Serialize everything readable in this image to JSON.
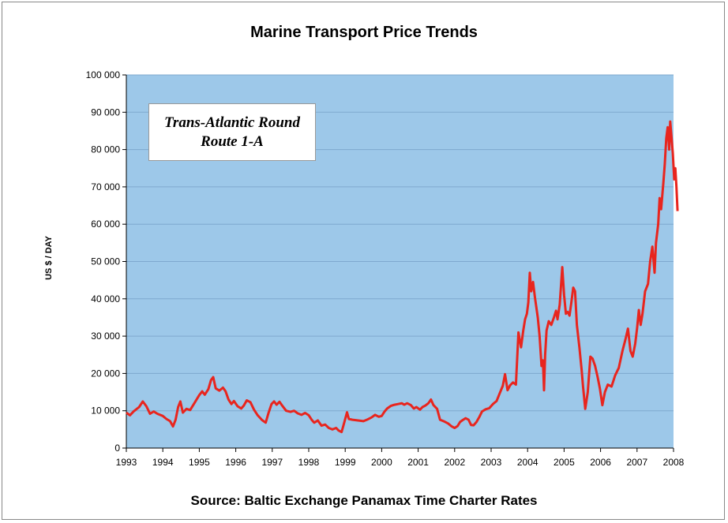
{
  "chart_data": {
    "type": "line",
    "title": "Marine Transport Price Trends",
    "ylabel": "US $ / DAY",
    "source": "Source: Baltic Exchange Panamax Time Charter Rates",
    "annotation": [
      "Trans-Atlantic Round",
      "Route 1-A"
    ],
    "xlim": [
      1993,
      2008
    ],
    "ylim": [
      0,
      100000
    ],
    "x_ticks": [
      1993,
      1994,
      1995,
      1996,
      1997,
      1998,
      1999,
      2000,
      2001,
      2002,
      2003,
      2004,
      2005,
      2006,
      2007,
      2008
    ],
    "y_ticks": [
      0,
      10000,
      20000,
      30000,
      40000,
      50000,
      60000,
      70000,
      80000,
      90000,
      100000
    ],
    "y_tick_labels": [
      "0",
      "10 000",
      "20 000",
      "30 000",
      "40 000",
      "50 000",
      "60 000",
      "70 000",
      "80 000",
      "90 000",
      "100 000"
    ],
    "grid": true,
    "plot_background": "#9dc8e9",
    "series": [
      {
        "color": "#e8251e",
        "points": [
          [
            1993.0,
            9500
          ],
          [
            1993.1,
            8800
          ],
          [
            1993.2,
            9800
          ],
          [
            1993.35,
            11000
          ],
          [
            1993.45,
            12500
          ],
          [
            1993.55,
            11200
          ],
          [
            1993.65,
            9200
          ],
          [
            1993.75,
            9800
          ],
          [
            1993.85,
            9200
          ],
          [
            1994.0,
            8600
          ],
          [
            1994.1,
            7800
          ],
          [
            1994.2,
            7200
          ],
          [
            1994.28,
            5800
          ],
          [
            1994.35,
            7600
          ],
          [
            1994.42,
            11000
          ],
          [
            1994.48,
            12500
          ],
          [
            1994.55,
            9500
          ],
          [
            1994.65,
            10500
          ],
          [
            1994.75,
            10200
          ],
          [
            1994.85,
            11800
          ],
          [
            1995.0,
            14200
          ],
          [
            1995.08,
            15200
          ],
          [
            1995.15,
            14300
          ],
          [
            1995.25,
            15800
          ],
          [
            1995.32,
            18200
          ],
          [
            1995.38,
            19000
          ],
          [
            1995.45,
            16000
          ],
          [
            1995.55,
            15400
          ],
          [
            1995.65,
            16200
          ],
          [
            1995.72,
            15200
          ],
          [
            1995.8,
            13000
          ],
          [
            1995.88,
            11800
          ],
          [
            1995.95,
            12600
          ],
          [
            1996.05,
            11200
          ],
          [
            1996.15,
            10600
          ],
          [
            1996.22,
            11400
          ],
          [
            1996.3,
            12800
          ],
          [
            1996.4,
            12300
          ],
          [
            1996.5,
            10300
          ],
          [
            1996.6,
            8800
          ],
          [
            1996.72,
            7500
          ],
          [
            1996.82,
            6800
          ],
          [
            1996.9,
            9500
          ],
          [
            1996.98,
            11800
          ],
          [
            1997.05,
            12500
          ],
          [
            1997.12,
            11600
          ],
          [
            1997.2,
            12400
          ],
          [
            1997.28,
            11300
          ],
          [
            1997.38,
            10000
          ],
          [
            1997.5,
            9700
          ],
          [
            1997.6,
            10000
          ],
          [
            1997.7,
            9300
          ],
          [
            1997.8,
            8900
          ],
          [
            1997.9,
            9400
          ],
          [
            1998.0,
            8800
          ],
          [
            1998.08,
            7600
          ],
          [
            1998.15,
            6800
          ],
          [
            1998.25,
            7400
          ],
          [
            1998.35,
            6000
          ],
          [
            1998.45,
            6300
          ],
          [
            1998.55,
            5400
          ],
          [
            1998.65,
            5000
          ],
          [
            1998.75,
            5400
          ],
          [
            1998.82,
            4700
          ],
          [
            1998.9,
            4300
          ],
          [
            1998.95,
            6000
          ],
          [
            1999.0,
            7800
          ],
          [
            1999.05,
            9600
          ],
          [
            1999.1,
            7800
          ],
          [
            1999.2,
            7600
          ],
          [
            1999.35,
            7400
          ],
          [
            1999.5,
            7200
          ],
          [
            1999.62,
            7700
          ],
          [
            1999.72,
            8200
          ],
          [
            1999.82,
            8900
          ],
          [
            1999.92,
            8400
          ],
          [
            2000.0,
            8600
          ],
          [
            2000.08,
            9800
          ],
          [
            2000.15,
            10600
          ],
          [
            2000.25,
            11300
          ],
          [
            2000.35,
            11600
          ],
          [
            2000.45,
            11800
          ],
          [
            2000.55,
            12000
          ],
          [
            2000.62,
            11600
          ],
          [
            2000.7,
            12000
          ],
          [
            2000.8,
            11500
          ],
          [
            2000.88,
            10600
          ],
          [
            2000.95,
            11000
          ],
          [
            2001.05,
            10300
          ],
          [
            2001.12,
            11000
          ],
          [
            2001.2,
            11400
          ],
          [
            2001.28,
            12000
          ],
          [
            2001.35,
            13000
          ],
          [
            2001.42,
            11500
          ],
          [
            2001.52,
            10500
          ],
          [
            2001.6,
            7600
          ],
          [
            2001.72,
            7100
          ],
          [
            2001.82,
            6600
          ],
          [
            2001.92,
            5800
          ],
          [
            2002.0,
            5400
          ],
          [
            2002.08,
            5900
          ],
          [
            2002.15,
            7000
          ],
          [
            2002.22,
            7500
          ],
          [
            2002.3,
            8000
          ],
          [
            2002.38,
            7600
          ],
          [
            2002.45,
            6200
          ],
          [
            2002.52,
            6100
          ],
          [
            2002.6,
            7000
          ],
          [
            2002.68,
            8400
          ],
          [
            2002.75,
            9800
          ],
          [
            2002.85,
            10400
          ],
          [
            2002.95,
            10700
          ],
          [
            2003.05,
            11800
          ],
          [
            2003.15,
            12600
          ],
          [
            2003.25,
            15000
          ],
          [
            2003.32,
            16700
          ],
          [
            2003.38,
            19800
          ],
          [
            2003.45,
            15500
          ],
          [
            2003.52,
            16800
          ],
          [
            2003.6,
            17600
          ],
          [
            2003.68,
            17000
          ],
          [
            2003.75,
            31000
          ],
          [
            2003.82,
            27000
          ],
          [
            2003.88,
            31500
          ],
          [
            2003.93,
            34500
          ],
          [
            2003.98,
            36000
          ],
          [
            2004.02,
            39000
          ],
          [
            2004.06,
            47000
          ],
          [
            2004.1,
            42000
          ],
          [
            2004.15,
            44500
          ],
          [
            2004.2,
            40500
          ],
          [
            2004.28,
            35000
          ],
          [
            2004.33,
            30000
          ],
          [
            2004.38,
            22000
          ],
          [
            2004.42,
            23500
          ],
          [
            2004.45,
            15500
          ],
          [
            2004.48,
            25000
          ],
          [
            2004.52,
            31500
          ],
          [
            2004.58,
            34000
          ],
          [
            2004.65,
            33000
          ],
          [
            2004.72,
            35000
          ],
          [
            2004.78,
            36800
          ],
          [
            2004.82,
            34500
          ],
          [
            2004.88,
            38500
          ],
          [
            2004.95,
            48500
          ],
          [
            2005.0,
            41000
          ],
          [
            2005.05,
            36000
          ],
          [
            2005.1,
            36500
          ],
          [
            2005.15,
            35500
          ],
          [
            2005.2,
            39000
          ],
          [
            2005.25,
            43000
          ],
          [
            2005.3,
            42000
          ],
          [
            2005.35,
            33000
          ],
          [
            2005.42,
            27000
          ],
          [
            2005.48,
            21000
          ],
          [
            2005.52,
            16500
          ],
          [
            2005.58,
            10500
          ],
          [
            2005.65,
            15000
          ],
          [
            2005.72,
            24500
          ],
          [
            2005.78,
            24000
          ],
          [
            2005.85,
            22000
          ],
          [
            2005.92,
            19000
          ],
          [
            2005.98,
            16000
          ],
          [
            2006.05,
            11500
          ],
          [
            2006.12,
            15000
          ],
          [
            2006.2,
            17000
          ],
          [
            2006.3,
            16500
          ],
          [
            2006.4,
            19500
          ],
          [
            2006.5,
            21500
          ],
          [
            2006.6,
            26000
          ],
          [
            2006.68,
            29000
          ],
          [
            2006.75,
            32000
          ],
          [
            2006.82,
            26000
          ],
          [
            2006.88,
            24500
          ],
          [
            2006.95,
            28000
          ],
          [
            2007.0,
            32000
          ],
          [
            2007.05,
            37000
          ],
          [
            2007.1,
            33000
          ],
          [
            2007.15,
            36000
          ],
          [
            2007.22,
            42000
          ],
          [
            2007.3,
            44000
          ],
          [
            2007.36,
            50000
          ],
          [
            2007.42,
            54000
          ],
          [
            2007.48,
            47000
          ],
          [
            2007.52,
            55000
          ],
          [
            2007.58,
            60000
          ],
          [
            2007.62,
            67000
          ],
          [
            2007.66,
            64000
          ],
          [
            2007.72,
            71000
          ],
          [
            2007.76,
            76000
          ],
          [
            2007.8,
            83000
          ],
          [
            2007.84,
            86000
          ],
          [
            2007.88,
            80000
          ],
          [
            2007.91,
            87500
          ],
          [
            2007.94,
            84000
          ],
          [
            2007.98,
            79000
          ],
          [
            2008.02,
            72000
          ],
          [
            2008.05,
            75000
          ],
          [
            2008.08,
            70000
          ],
          [
            2008.11,
            63500
          ]
        ]
      }
    ]
  }
}
